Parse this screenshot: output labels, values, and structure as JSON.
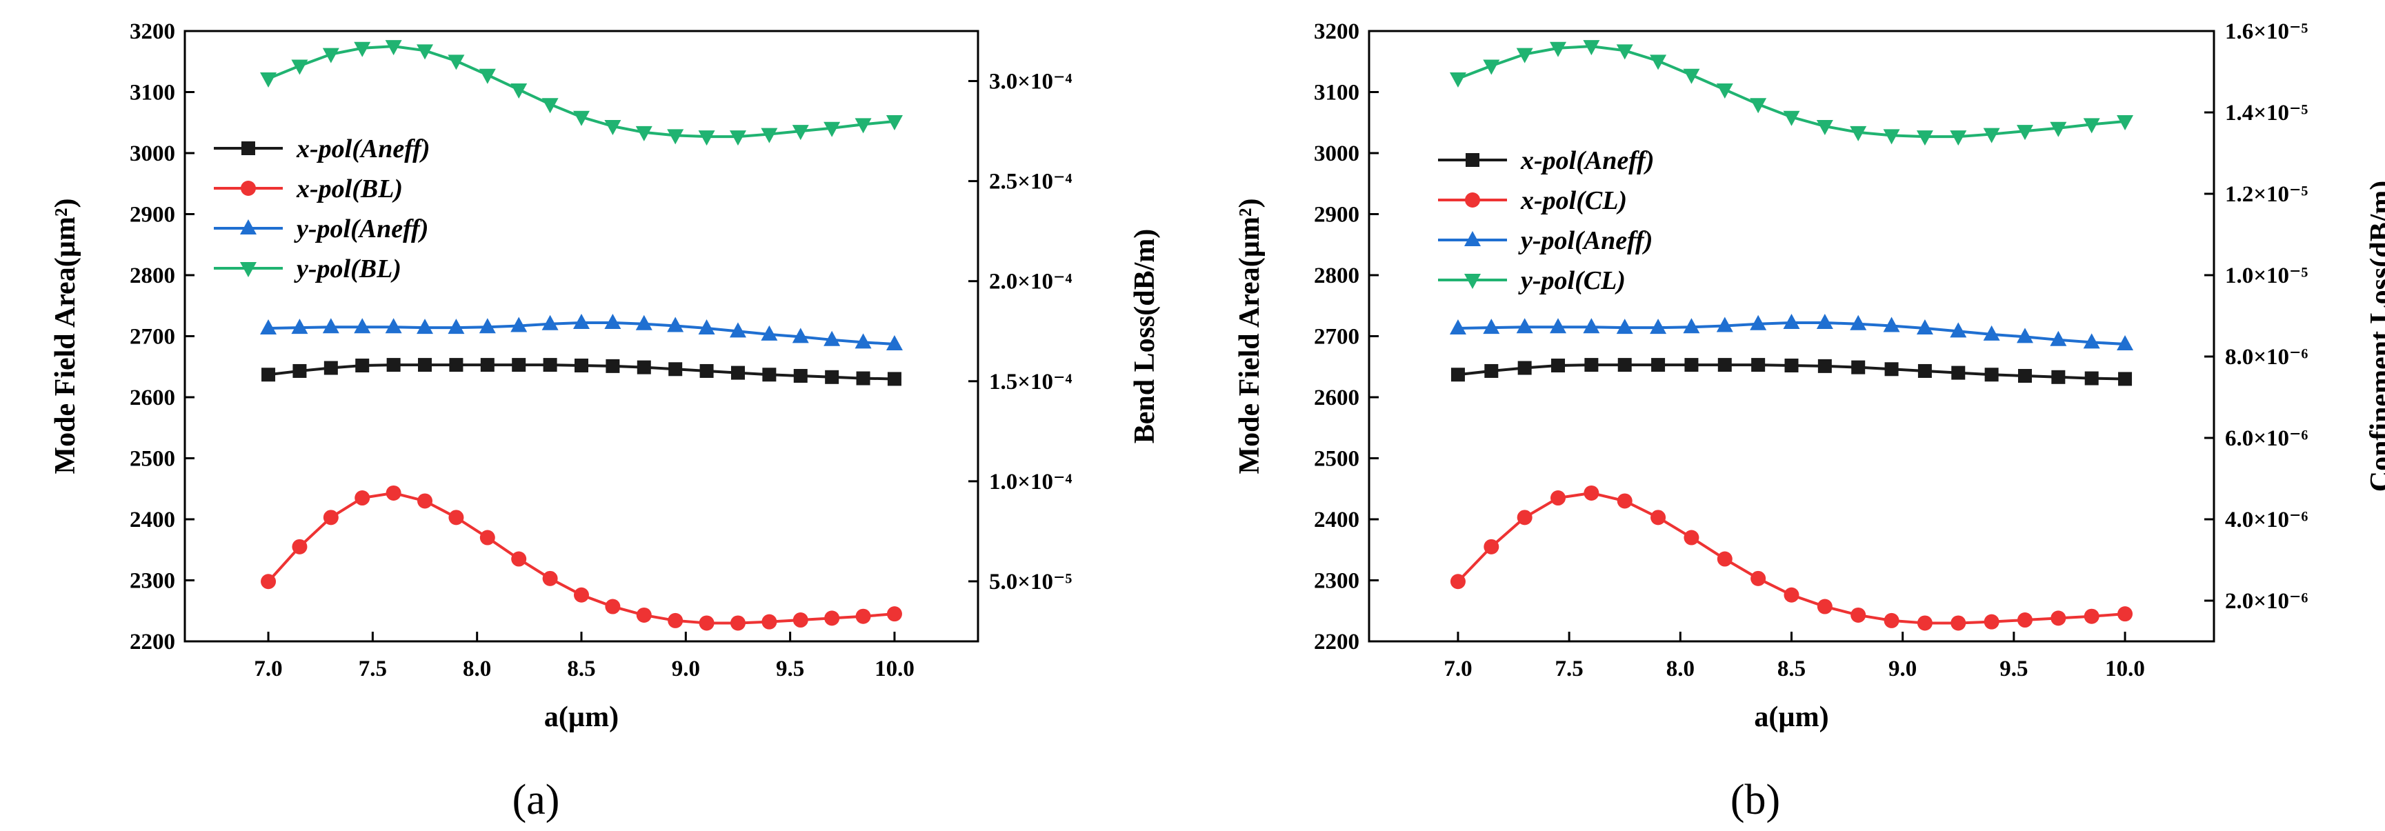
{
  "chart_data": [
    {
      "panel_label": "(a)",
      "type": "line",
      "xlabel": "a(µm)",
      "ylabel": "Mode Field Area(µm²)",
      "y2label": "Bend Loss(dB/m)",
      "xlim": [
        6.6,
        10.4
      ],
      "ylim": [
        2200,
        3200
      ],
      "y2lim": [
        2e-05,
        0.000325
      ],
      "xticks": [
        7.0,
        7.5,
        8.0,
        8.5,
        9.0,
        9.5,
        10.0
      ],
      "xtick_labels": [
        "7.0",
        "7.5",
        "8.0",
        "8.5",
        "9.0",
        "9.5",
        "10.0"
      ],
      "yticks": [
        2200,
        2300,
        2400,
        2500,
        2600,
        2700,
        2800,
        2900,
        3000,
        3100,
        3200
      ],
      "ytick_labels": [
        "2200",
        "2300",
        "2400",
        "2500",
        "2600",
        "2700",
        "2800",
        "2900",
        "3000",
        "3100",
        "3200"
      ],
      "y2ticks": [
        5e-05,
        0.0001,
        0.00015,
        0.0002,
        0.00025,
        0.0003
      ],
      "y2tick_labels": [
        "5.0×10⁻⁵",
        "1.0×10⁻⁴",
        "1.5×10⁻⁴",
        "2.0×10⁻⁴",
        "2.5×10⁻⁴",
        "3.0×10⁻⁴"
      ],
      "x": [
        7.0,
        7.15,
        7.3,
        7.45,
        7.6,
        7.75,
        7.9,
        8.05,
        8.2,
        8.35,
        8.5,
        8.65,
        8.8,
        8.95,
        9.1,
        9.25,
        9.4,
        9.55,
        9.7,
        9.85,
        10.0
      ],
      "series": [
        {
          "name": "x-pol(Aneff)",
          "axis": "left",
          "color": "#1a1a1a",
          "marker": "square",
          "values": [
            2637,
            2643,
            2648,
            2652,
            2653,
            2653,
            2653,
            2653,
            2653,
            2653,
            2652,
            2651,
            2649,
            2646,
            2643,
            2640,
            2637,
            2635,
            2633,
            2631,
            2630
          ]
        },
        {
          "name": "x-pol(BL)",
          "axis": "left",
          "color": "#ee3333",
          "marker": "circle",
          "values": [
            2298,
            2355,
            2403,
            2435,
            2443,
            2430,
            2403,
            2370,
            2335,
            2303,
            2276,
            2257,
            2243,
            2234,
            2230,
            2230,
            2232,
            2235,
            2238,
            2241,
            2245
          ]
        },
        {
          "name": "y-pol(Aneff)",
          "axis": "left",
          "color": "#1f6fd1",
          "marker": "triangle-up",
          "values": [
            2713,
            2714,
            2715,
            2715,
            2715,
            2714,
            2714,
            2715,
            2717,
            2720,
            2722,
            2722,
            2720,
            2717,
            2713,
            2708,
            2703,
            2699,
            2694,
            2690,
            2687
          ]
        },
        {
          "name": "y-pol(BL)",
          "axis": "left",
          "color": "#20b371",
          "marker": "triangle-down",
          "values": [
            3122,
            3143,
            3162,
            3172,
            3175,
            3168,
            3151,
            3128,
            3104,
            3080,
            3059,
            3044,
            3034,
            3029,
            3027,
            3027,
            3031,
            3036,
            3041,
            3047,
            3052
          ]
        }
      ],
      "legend_position": "upper-left"
    },
    {
      "panel_label": "(b)",
      "type": "line",
      "xlabel": "a(µm)",
      "ylabel": "Mode Field Area(µm²)",
      "y2label": "Confinement Loss(dB/m)",
      "xlim": [
        6.6,
        10.4
      ],
      "ylim": [
        2200,
        3200
      ],
      "y2lim": [
        1e-06,
        1.6e-05
      ],
      "xticks": [
        7.0,
        7.5,
        8.0,
        8.5,
        9.0,
        9.5,
        10.0
      ],
      "xtick_labels": [
        "7.0",
        "7.5",
        "8.0",
        "8.5",
        "9.0",
        "9.5",
        "10.0"
      ],
      "yticks": [
        2200,
        2300,
        2400,
        2500,
        2600,
        2700,
        2800,
        2900,
        3000,
        3100,
        3200
      ],
      "ytick_labels": [
        "2200",
        "2300",
        "2400",
        "2500",
        "2600",
        "2700",
        "2800",
        "2900",
        "3000",
        "3100",
        "3200"
      ],
      "y2ticks": [
        2e-06,
        4e-06,
        6e-06,
        8e-06,
        1e-05,
        1.2e-05,
        1.4e-05,
        1.6e-05
      ],
      "y2tick_labels": [
        "2.0×10⁻⁶",
        "4.0×10⁻⁶",
        "6.0×10⁻⁶",
        "8.0×10⁻⁶",
        "1.0×10⁻⁵",
        "1.2×10⁻⁵",
        "1.4×10⁻⁵",
        "1.6×10⁻⁵"
      ],
      "x": [
        7.0,
        7.15,
        7.3,
        7.45,
        7.6,
        7.75,
        7.9,
        8.05,
        8.2,
        8.35,
        8.5,
        8.65,
        8.8,
        8.95,
        9.1,
        9.25,
        9.4,
        9.55,
        9.7,
        9.85,
        10.0
      ],
      "series": [
        {
          "name": "x-pol(Aneff)",
          "axis": "left",
          "color": "#1a1a1a",
          "marker": "square",
          "values": [
            2637,
            2643,
            2648,
            2652,
            2653,
            2653,
            2653,
            2653,
            2653,
            2653,
            2652,
            2651,
            2649,
            2646,
            2643,
            2640,
            2637,
            2635,
            2633,
            2631,
            2630
          ]
        },
        {
          "name": "x-pol(CL)",
          "axis": "left",
          "color": "#ee3333",
          "marker": "circle",
          "values": [
            2298,
            2355,
            2403,
            2435,
            2443,
            2430,
            2403,
            2370,
            2335,
            2303,
            2276,
            2257,
            2243,
            2234,
            2230,
            2230,
            2232,
            2235,
            2238,
            2241,
            2245
          ]
        },
        {
          "name": "y-pol(Aneff)",
          "axis": "left",
          "color": "#1f6fd1",
          "marker": "triangle-up",
          "values": [
            2713,
            2714,
            2715,
            2715,
            2715,
            2714,
            2714,
            2715,
            2717,
            2720,
            2722,
            2722,
            2720,
            2717,
            2713,
            2708,
            2703,
            2699,
            2694,
            2690,
            2687
          ]
        },
        {
          "name": "y-pol(CL)",
          "axis": "left",
          "color": "#20b371",
          "marker": "triangle-down",
          "values": [
            3122,
            3143,
            3162,
            3172,
            3175,
            3168,
            3151,
            3128,
            3104,
            3080,
            3059,
            3044,
            3034,
            3029,
            3027,
            3027,
            3031,
            3036,
            3041,
            3047,
            3052
          ]
        }
      ],
      "legend_position": "upper-left"
    }
  ]
}
